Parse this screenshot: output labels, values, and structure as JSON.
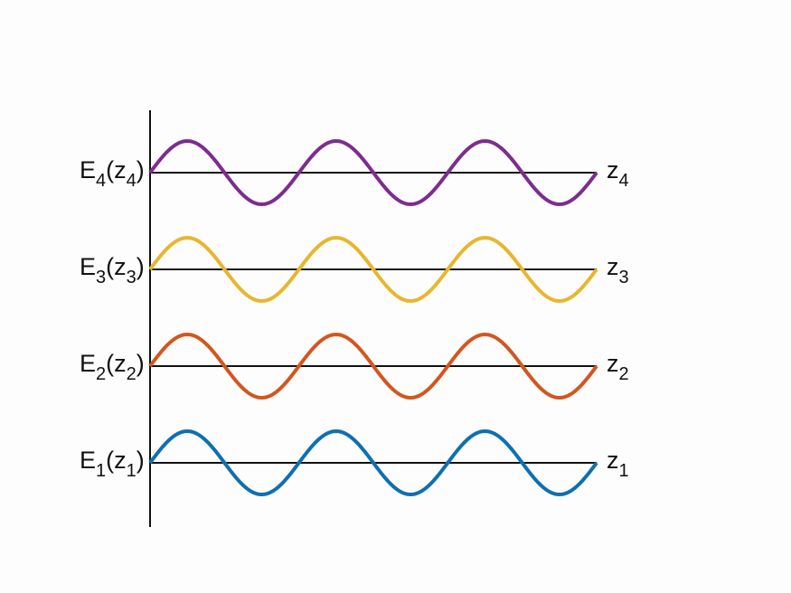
{
  "waves": [
    {
      "color": "#7d2c8f",
      "left_label": [
        "E",
        "4",
        "(z",
        "4",
        ")"
      ],
      "right_label": [
        "z",
        "4"
      ]
    },
    {
      "color": "#e8b62e",
      "left_label": [
        "E",
        "3",
        "(z",
        "3",
        ")"
      ],
      "right_label": [
        "z",
        "3"
      ]
    },
    {
      "color": "#d3561f",
      "left_label": [
        "E",
        "2",
        "(z",
        "2",
        ")"
      ],
      "right_label": [
        "z",
        "2"
      ]
    },
    {
      "color": "#0f6fb1",
      "left_label": [
        "E",
        "1",
        "(z",
        "1",
        ")"
      ],
      "right_label": [
        "z",
        "1"
      ]
    }
  ]
}
